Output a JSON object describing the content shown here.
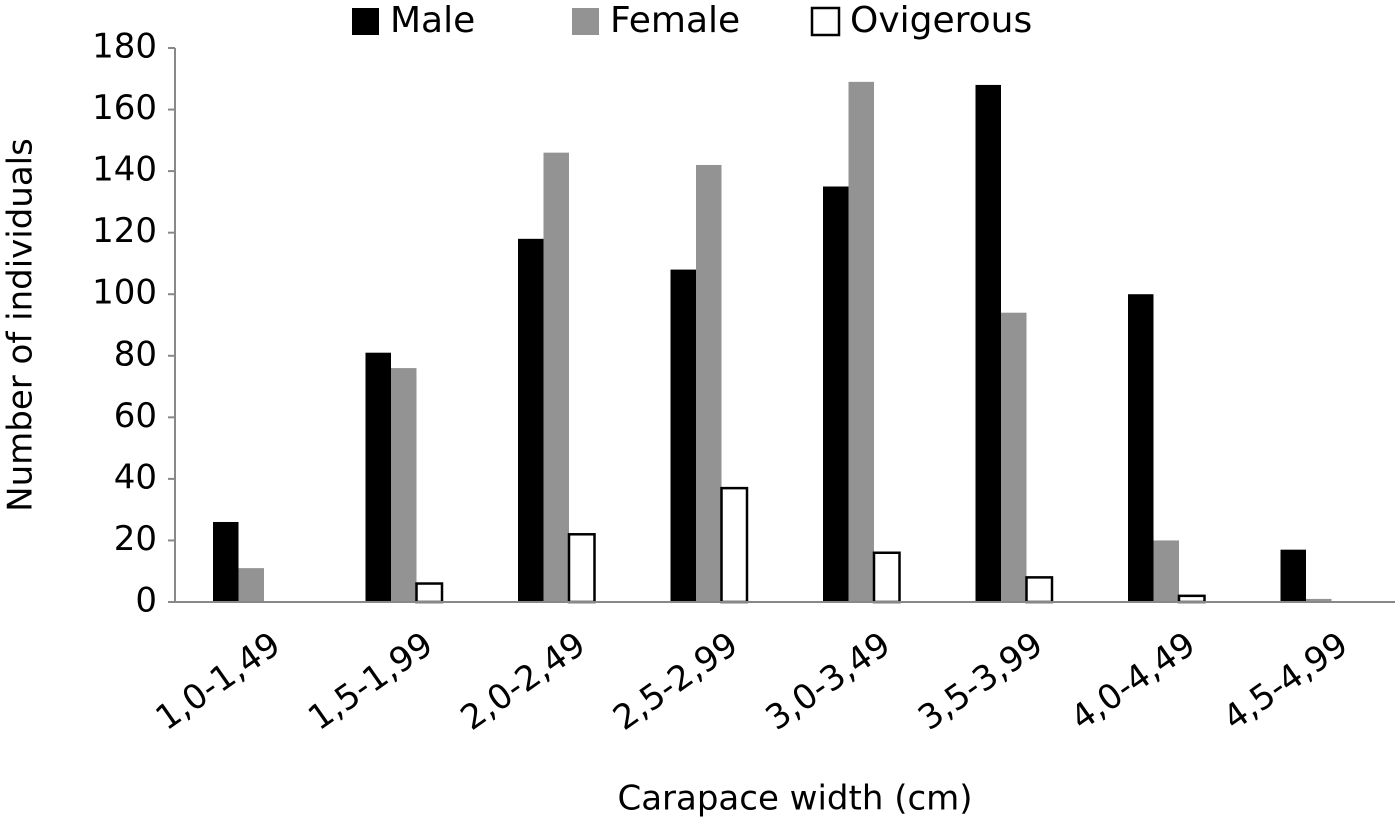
{
  "chart_data": {
    "type": "bar",
    "categories": [
      "1,0-1,49",
      "1,5-1,99",
      "2,0-2,49",
      "2,5-2,99",
      "3,0-3,49",
      "3,5-3,99",
      "4,0-4,49",
      "4,5-4,99"
    ],
    "series": [
      {
        "name": "Male",
        "color": "#000000",
        "values": [
          26,
          81,
          118,
          108,
          135,
          168,
          100,
          17
        ]
      },
      {
        "name": "Female",
        "color": "#939393",
        "values": [
          11,
          76,
          146,
          142,
          169,
          94,
          20,
          1
        ]
      },
      {
        "name": "Ovigerous",
        "color": "#ffffff",
        "values": [
          0,
          6,
          22,
          37,
          16,
          8,
          2,
          0
        ]
      }
    ],
    "x_label": "Carapace width (cm)",
    "y_label": "Number of individuals",
    "ylim": [
      0,
      180
    ],
    "yticks": [
      0,
      20,
      40,
      60,
      80,
      100,
      120,
      140,
      160,
      180
    ]
  }
}
